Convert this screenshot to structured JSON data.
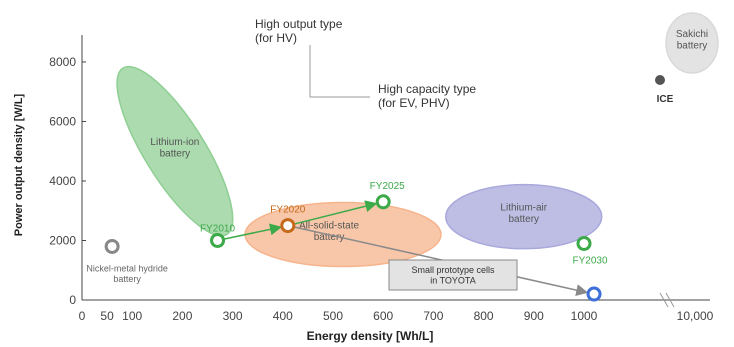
{
  "chart_data": {
    "type": "scatter",
    "xlabel": "Energy density [Wh/L]",
    "ylabel": "Power output density [W/L]",
    "xlim": [
      0,
      1100
    ],
    "ylim": [
      0,
      9000
    ],
    "x_ticks": [
      "0",
      "50",
      "100",
      "200",
      "300",
      "400",
      "500",
      "600",
      "700",
      "800",
      "900",
      "1000",
      "10,000"
    ],
    "y_ticks": [
      "0",
      "2000",
      "4000",
      "6000",
      "8000"
    ],
    "axis_break": "x-axis break between 1000 and 10,000 (compressed scale)",
    "grid": false,
    "regions": [
      {
        "name": "Lithium-ion battery",
        "label": "Lithium-ion\nbattery",
        "color": "#8fcf93",
        "center": [
          185,
          5000
        ],
        "note": "tilted ellipse spanning ~(90,7800) to (290,1800)"
      },
      {
        "name": "All-solid-state battery",
        "label": "All-solid-state\nbattery",
        "color": "#f6b48c",
        "center": [
          520,
          2200
        ]
      },
      {
        "name": "Lithium-air battery",
        "label": "Lithium-air\nbattery",
        "color": "#a8a8dc",
        "center": [
          880,
          2800
        ]
      },
      {
        "name": "Sakichi battery",
        "label": "Sakichi\nbattery",
        "color": "#d9d9d9",
        "center": [
          10000,
          9300
        ],
        "note": "drawn at the 10,000 end of the axis"
      }
    ],
    "points": [
      {
        "label": "Nickel-metal hydride battery",
        "x": 60,
        "y": 1800,
        "color": "#888888"
      },
      {
        "label": "FY2010",
        "x": 270,
        "y": 2000,
        "color": "#3daa4a"
      },
      {
        "label": "FY2020",
        "x": 410,
        "y": 2500,
        "color": "#c46a1a"
      },
      {
        "label": "FY2025",
        "x": 600,
        "y": 3300,
        "color": "#3daa4a"
      },
      {
        "label": "FY2030",
        "x": 1000,
        "y": 1900,
        "color": "#3daa4a"
      },
      {
        "label": "Small prototype cells by TOYOTA",
        "x": 1020,
        "y": 200,
        "color": "#3c6fd8"
      },
      {
        "label": "ICE",
        "x": 10000,
        "y": 7700,
        "color": "#555555"
      }
    ],
    "arrows": [
      {
        "from": "FY2010",
        "to": "FY2020"
      },
      {
        "from": "FY2020",
        "to": "FY2025"
      },
      {
        "from": "FY2020",
        "to": "Small prototype cells by TOYOTA"
      }
    ],
    "annotations": [
      {
        "text": "High output type\n(for HV)"
      },
      {
        "text": "High capacity type\n(for EV, PHV)"
      },
      {
        "text": "Small prototype cells\nin TOYOTA"
      }
    ]
  }
}
